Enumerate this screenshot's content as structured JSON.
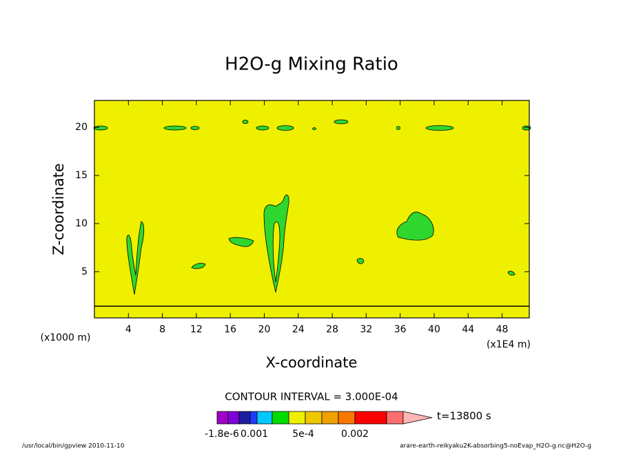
{
  "chart_data": {
    "type": "contour",
    "title": "H2O-g Mixing Ratio",
    "x_label": "X-coordinate",
    "y_label": "Z-coordinate",
    "x_unit_left": "(x1000 m)",
    "x_unit_right": "(x1E4 m)",
    "xlim": [
      0,
      51.2
    ],
    "ylim": [
      0.2,
      22.8
    ],
    "xticks": [
      4,
      8,
      12,
      16,
      20,
      24,
      28,
      32,
      36,
      40,
      44,
      48
    ],
    "yticks": [
      5,
      10,
      15,
      20
    ],
    "background_color": "#eef000",
    "contour_color": "#2ed62e",
    "contour_interval": "CONTOUR INTERVAL = 3.000E-04",
    "time_label": "t=13800 s",
    "colorbar_colors": [
      "#a000c8",
      "#8200dc",
      "#1e1ea0",
      "#1e3cff",
      "#00c8ff",
      "#00dc00",
      "#eef000",
      "#f0c800",
      "#f0a000",
      "#fa7800",
      "#ff0000",
      "#ff6e6e",
      "#ffb4b4"
    ],
    "colorbar_labels": [
      "-1.8e-6",
      "0.001",
      "5e-4",
      "0.002"
    ],
    "footer_left": "/usr/local/bin/gpview  2010-11-10",
    "footer_right": "arare-earth-reikyaku2K-absorbing5-noEvap_H2O-g.nc@H2O-g"
  }
}
